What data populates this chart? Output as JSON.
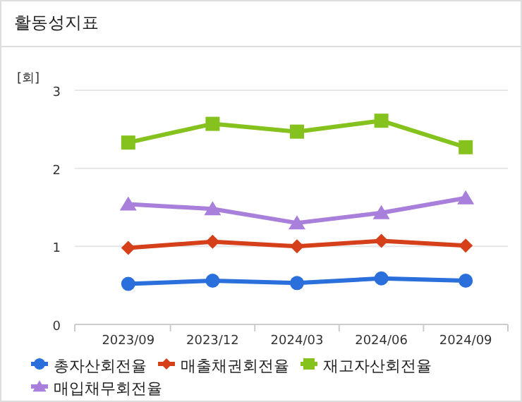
{
  "chart_data": {
    "type": "line",
    "title": "활동성지표",
    "ylabel": "[회]",
    "categories": [
      "2023/09",
      "2023/12",
      "2024/03",
      "2024/06",
      "2024/09"
    ],
    "series": [
      {
        "name": "총자산회전율",
        "color": "#2a6fdb",
        "marker": "circle",
        "values": [
          0.52,
          0.56,
          0.53,
          0.59,
          0.56
        ]
      },
      {
        "name": "매출채권회전율",
        "color": "#d5401a",
        "marker": "diamond",
        "values": [
          0.98,
          1.06,
          1.0,
          1.07,
          1.01
        ]
      },
      {
        "name": "재고자산회전율",
        "color": "#86c21e",
        "marker": "square",
        "values": [
          2.33,
          2.57,
          2.47,
          2.61,
          2.27
        ]
      },
      {
        "name": "매입채무회전율",
        "color": "#a97fdc",
        "marker": "triangle",
        "values": [
          1.54,
          1.48,
          1.3,
          1.43,
          1.62
        ]
      }
    ],
    "ylim": [
      0,
      3
    ],
    "yticks": [
      0,
      1,
      2,
      3
    ],
    "grid": "y",
    "legend": "bottom"
  }
}
